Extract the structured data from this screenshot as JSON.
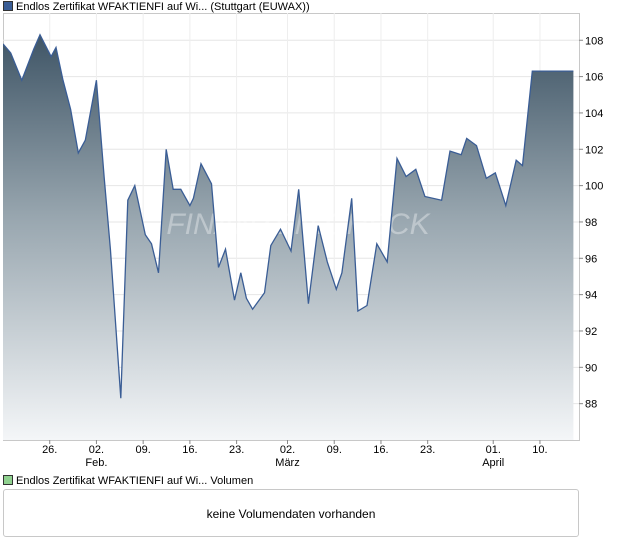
{
  "legend": {
    "price_name": "Endlos Zertifikat WFAKTIENFI auf Wi...",
    "price_exchange": "(Stuttgart (EUWAX))",
    "price_color": "#3a5d95",
    "volume_name": "Endlos Zertifikat WFAKTIENFI auf Wi...",
    "volume_label": "Volumen",
    "volume_color": "#8fd18f"
  },
  "volume": {
    "message": "keine Volumendaten vorhanden"
  },
  "watermark": "FINANZEN.CHECK",
  "chart_data": {
    "type": "area",
    "title": "Endlos Zertifikat WFAKTIENFI auf Wi... (Stuttgart (EUWAX))",
    "xlabel": "",
    "ylabel": "",
    "ylim": [
      86.0,
      109.5
    ],
    "y_ticks": [
      88,
      90,
      92,
      94,
      96,
      98,
      100,
      102,
      104,
      106,
      108
    ],
    "xlim": [
      0,
      82.6
    ],
    "x_ticks": [
      {
        "x": 6.7,
        "label": "26."
      },
      {
        "x": 13.4,
        "label": "02.",
        "month": "Feb."
      },
      {
        "x": 20.1,
        "label": "09."
      },
      {
        "x": 26.8,
        "label": "16."
      },
      {
        "x": 33.5,
        "label": "23."
      },
      {
        "x": 40.8,
        "label": "02.",
        "month": "März"
      },
      {
        "x": 47.5,
        "label": "09."
      },
      {
        "x": 54.2,
        "label": "16."
      },
      {
        "x": 60.9,
        "label": "23."
      },
      {
        "x": 70.3,
        "label": "01.",
        "month": "April"
      },
      {
        "x": 77.0,
        "label": "10."
      }
    ],
    "series": [
      {
        "name": "Endlos Zertifikat WFAKTIENFI auf Wi...",
        "x": [
          0.0,
          1.1,
          2.7,
          4.4,
          5.3,
          6.9,
          7.6,
          8.6,
          9.7,
          10.8,
          11.8,
          13.4,
          14.5,
          15.4,
          16.9,
          17.9,
          18.9,
          20.4,
          21.3,
          22.3,
          23.4,
          24.4,
          25.5,
          26.8,
          27.3,
          28.4,
          29.9,
          30.9,
          31.9,
          33.2,
          34.1,
          34.9,
          35.8,
          37.5,
          38.4,
          39.8,
          41.3,
          42.4,
          43.8,
          45.2,
          46.5,
          47.8,
          48.6,
          50.0,
          50.9,
          52.2,
          53.6,
          55.1,
          56.5,
          57.8,
          59.2,
          60.5,
          62.9,
          64.1,
          65.7,
          66.5,
          67.9,
          69.3,
          70.6,
          72.1,
          73.6,
          74.5,
          75.9,
          76.8,
          78.5,
          79.7,
          80.9,
          81.8
        ],
        "values": [
          107.8,
          107.3,
          105.8,
          107.5,
          108.3,
          107.1,
          107.6,
          105.8,
          104.2,
          101.8,
          102.5,
          105.8,
          100.5,
          96.5,
          88.3,
          99.2,
          100.0,
          97.3,
          96.8,
          95.2,
          102.0,
          99.8,
          99.8,
          98.9,
          99.3,
          101.2,
          100.1,
          95.5,
          96.5,
          93.7,
          95.2,
          93.8,
          93.2,
          94.1,
          96.7,
          97.6,
          96.4,
          99.8,
          93.5,
          97.8,
          95.8,
          94.3,
          95.2,
          99.3,
          93.1,
          93.4,
          96.8,
          95.8,
          101.5,
          100.5,
          100.9,
          99.4,
          99.2,
          101.9,
          101.7,
          102.6,
          102.2,
          100.4,
          100.7,
          98.9,
          101.4,
          101.1,
          106.3,
          106.3,
          106.3,
          106.3,
          106.3,
          106.3
        ]
      }
    ]
  }
}
